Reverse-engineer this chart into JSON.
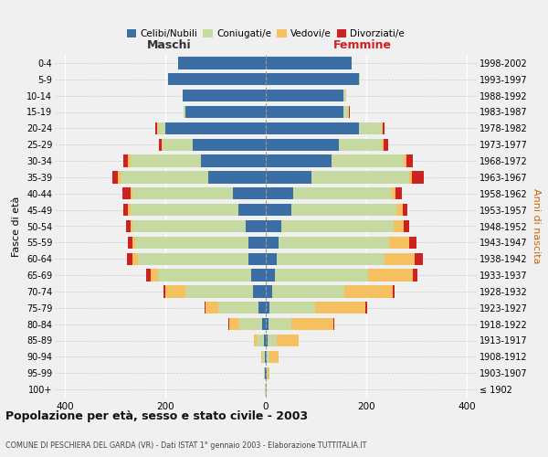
{
  "age_groups": [
    "100+",
    "95-99",
    "90-94",
    "85-89",
    "80-84",
    "75-79",
    "70-74",
    "65-69",
    "60-64",
    "55-59",
    "50-54",
    "45-49",
    "40-44",
    "35-39",
    "30-34",
    "25-29",
    "20-24",
    "15-19",
    "10-14",
    "5-9",
    "0-4"
  ],
  "birth_years": [
    "≤ 1902",
    "1903-1907",
    "1908-1912",
    "1913-1917",
    "1918-1922",
    "1923-1927",
    "1928-1932",
    "1933-1937",
    "1938-1942",
    "1943-1947",
    "1948-1952",
    "1953-1957",
    "1958-1962",
    "1963-1967",
    "1968-1972",
    "1973-1977",
    "1978-1982",
    "1983-1987",
    "1988-1992",
    "1993-1997",
    "1998-2002"
  ],
  "males": {
    "celibe": [
      0,
      1,
      2,
      4,
      8,
      15,
      25,
      30,
      35,
      35,
      40,
      55,
      65,
      115,
      130,
      145,
      200,
      160,
      165,
      195,
      175
    ],
    "coniugato": [
      1,
      2,
      5,
      15,
      45,
      80,
      135,
      185,
      220,
      225,
      225,
      215,
      200,
      175,
      140,
      60,
      15,
      3,
      0,
      0,
      0
    ],
    "vedovo": [
      0,
      1,
      3,
      5,
      20,
      25,
      40,
      15,
      10,
      5,
      5,
      5,
      5,
      5,
      5,
      3,
      2,
      0,
      0,
      0,
      0
    ],
    "divorziato": [
      0,
      0,
      0,
      0,
      2,
      2,
      3,
      8,
      12,
      10,
      8,
      8,
      15,
      10,
      8,
      5,
      3,
      1,
      0,
      0,
      0
    ]
  },
  "females": {
    "nubile": [
      0,
      1,
      2,
      3,
      5,
      8,
      12,
      18,
      22,
      25,
      30,
      50,
      55,
      90,
      130,
      145,
      185,
      155,
      155,
      185,
      170
    ],
    "coniugata": [
      0,
      2,
      6,
      18,
      45,
      90,
      145,
      185,
      215,
      220,
      225,
      210,
      195,
      195,
      145,
      85,
      45,
      10,
      5,
      2,
      0
    ],
    "vedova": [
      1,
      4,
      18,
      45,
      85,
      100,
      95,
      90,
      60,
      40,
      20,
      12,
      8,
      5,
      5,
      5,
      3,
      1,
      0,
      0,
      0
    ],
    "divorziata": [
      0,
      0,
      0,
      0,
      2,
      3,
      5,
      8,
      15,
      15,
      10,
      10,
      12,
      25,
      12,
      8,
      4,
      1,
      0,
      0,
      0
    ]
  },
  "color_celibe": "#3a6ea5",
  "color_coniugato": "#c5d9a0",
  "color_vedovo": "#f5c060",
  "color_divorziato": "#cc2222",
  "xlim": 420,
  "title": "Popolazione per età, sesso e stato civile - 2003",
  "subtitle": "COMUNE DI PESCHIERA DEL GARDA (VR) - Dati ISTAT 1° gennaio 2003 - Elaborazione TUTTITALIA.IT",
  "ylabel_left": "Fasce di età",
  "ylabel_right": "Anni di nascita",
  "label_maschi": "Maschi",
  "label_femmine": "Femmine",
  "legend_labels": [
    "Celibi/Nubili",
    "Coniugati/e",
    "Vedovi/e",
    "Divorziati/e"
  ],
  "bg_color": "#f0f0f0",
  "plot_bg": "#f0f0f0"
}
